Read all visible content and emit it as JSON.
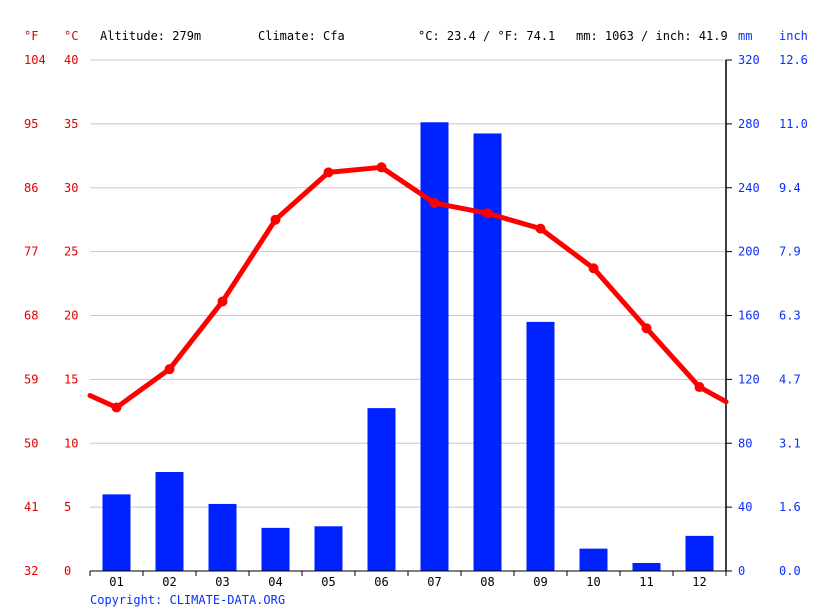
{
  "header": {
    "unit_f": "°F",
    "unit_c": "°C",
    "altitude": "Altitude: 279m",
    "climate": "Climate: Cfa",
    "avg_temp": "°C: 23.4 / °F: 74.1",
    "precip_total": "mm: 1063 / inch: 41.9",
    "unit_mm": "mm",
    "unit_inch": "inch"
  },
  "footer": {
    "copyright": "Copyright: CLIMATE-DATA.ORG"
  },
  "colors": {
    "temperature": "#ff0000",
    "precipitation": "#0022ff",
    "axis_left": "#e00000",
    "axis_right": "#0a2fff",
    "grid": "#c8c8c8",
    "text": "#000000"
  },
  "chart_data": {
    "type": "bar+line",
    "categories": [
      "01",
      "02",
      "03",
      "04",
      "05",
      "06",
      "07",
      "08",
      "09",
      "10",
      "11",
      "12"
    ],
    "series": [
      {
        "type": "bar",
        "axis": "right",
        "unit": "mm",
        "values": [
          48,
          62,
          42,
          27,
          28,
          102,
          281,
          274,
          156,
          14,
          5,
          22
        ]
      },
      {
        "type": "line",
        "axis": "left",
        "unit": "°C",
        "values": [
          12.8,
          15.8,
          21.1,
          27.5,
          31.2,
          31.6,
          28.8,
          28.0,
          26.8,
          23.7,
          19.0,
          14.4
        ]
      }
    ],
    "y_left": {
      "unit": "°C",
      "ylim": [
        0,
        40
      ],
      "ticks": [
        "0",
        "5",
        "10",
        "15",
        "20",
        "25",
        "30",
        "35",
        "40"
      ],
      "secondary_unit": "°F",
      "secondary_ticks": [
        "32",
        "41",
        "50",
        "59",
        "68",
        "77",
        "86",
        "95",
        "104"
      ]
    },
    "y_right": {
      "unit": "mm",
      "ylim": [
        0,
        320
      ],
      "ticks": [
        "0",
        "40",
        "80",
        "120",
        "160",
        "200",
        "240",
        "280",
        "320"
      ],
      "secondary_unit": "inch",
      "secondary_ticks": [
        "0.0",
        "1.6",
        "3.1",
        "4.7",
        "6.3",
        "7.9",
        "9.4",
        "11.0",
        "12.6"
      ]
    },
    "grid": true
  }
}
